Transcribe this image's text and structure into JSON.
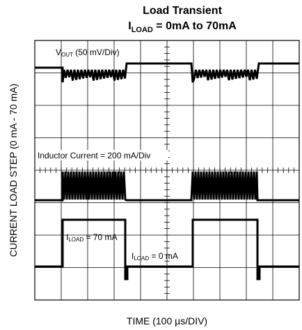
{
  "title": "Load Transient",
  "subtitle": {
    "symbol": "I",
    "subscript": "LOAD",
    "text": " = 0mA to 70mA"
  },
  "y_label": "CURRENT LOAD STEP (0 mA - 70 mA)",
  "x_label": "TIME (100 µs/DIV)",
  "annotations": {
    "vout": {
      "symbol": "V",
      "subscript": "OUT",
      "text": " (50 mV/Div)"
    },
    "inductor": "Inductor Current = 200 mA/Div",
    "iload_high": {
      "symbol": "I",
      "subscript": "LOAD",
      "text": " = 70 mA"
    },
    "iload_low": {
      "symbol": "I",
      "subscript": "LOAD",
      "text": " = 0 mA"
    }
  }
}
